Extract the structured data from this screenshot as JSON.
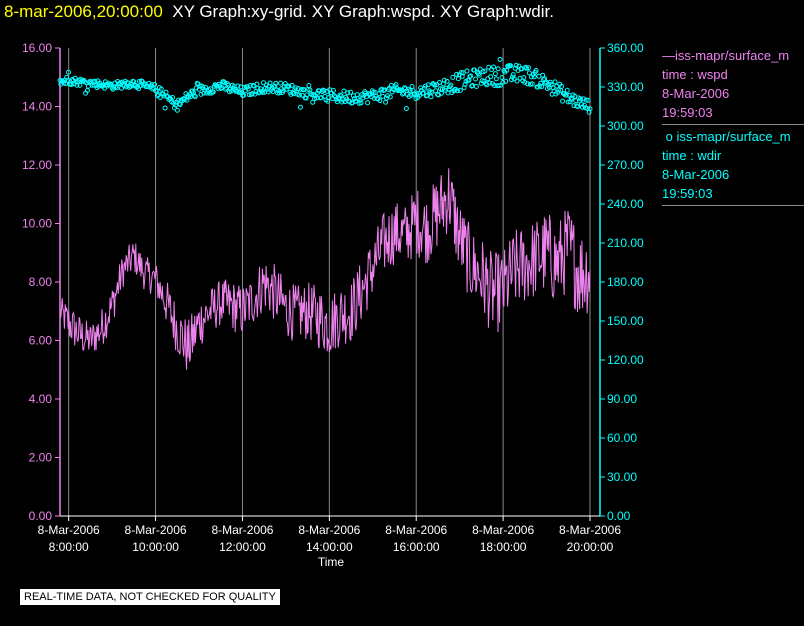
{
  "header": {
    "date": "8-mar-2006,20:00:00",
    "graphs": "XY Graph:xy-grid.  XY Graph:wspd.  XY Graph:wdir."
  },
  "legend": [
    {
      "label": "iss-mapr/surface_m",
      "line2": "time : wspd",
      "line3": "8-Mar-2006",
      "line4": "19:59:03",
      "color": "#ee82ee"
    },
    {
      "label": "iss-mapr/surface_m",
      "line2": "time : wdir",
      "line3": "8-Mar-2006",
      "line4": "19:59:03",
      "color": "#00ffff"
    }
  ],
  "notice": "REAL-TIME DATA, NOT CHECKED FOR QUALITY",
  "chart_data": {
    "type": "line",
    "xlabel": "Time",
    "x_ticks": [
      {
        "date": "8-Mar-2006",
        "time": "8:00:00",
        "hour": 8
      },
      {
        "date": "8-Mar-2006",
        "time": "10:00:00",
        "hour": 10
      },
      {
        "date": "8-Mar-2006",
        "time": "12:00:00",
        "hour": 12
      },
      {
        "date": "8-Mar-2006",
        "time": "14:00:00",
        "hour": 14
      },
      {
        "date": "8-Mar-2006",
        "time": "16:00:00",
        "hour": 16
      },
      {
        "date": "8-Mar-2006",
        "time": "18:00:00",
        "hour": 18
      },
      {
        "date": "8-Mar-2006",
        "time": "20:00:00",
        "hour": 20
      }
    ],
    "xlim": [
      7.8,
      20.0
    ],
    "y_left": {
      "ticks": [
        "0.00",
        "2.00",
        "4.00",
        "6.00",
        "8.00",
        "10.00",
        "12.00",
        "14.00",
        "16.00"
      ],
      "lim": [
        0,
        16
      ],
      "color": "#ee82ee"
    },
    "y_right": {
      "ticks": [
        "0.00",
        "30.00",
        "60.00",
        "90.00",
        "120.00",
        "150.00",
        "180.00",
        "210.00",
        "240.00",
        "270.00",
        "300.00",
        "330.00",
        "360.00"
      ],
      "lim": [
        0,
        360
      ],
      "color": "#00ffff"
    },
    "series": [
      {
        "name": "time : wspd",
        "axis": "left",
        "style": "line",
        "color": "#ee82ee",
        "x": [
          7.8,
          8.0,
          8.25,
          8.5,
          8.75,
          9.0,
          9.25,
          9.5,
          9.75,
          10.0,
          10.25,
          10.5,
          10.75,
          11.0,
          11.25,
          11.5,
          11.75,
          12.0,
          12.25,
          12.5,
          12.75,
          13.0,
          13.25,
          13.5,
          13.75,
          14.0,
          14.25,
          14.5,
          14.75,
          15.0,
          15.25,
          15.5,
          15.75,
          16.0,
          16.25,
          16.5,
          16.75,
          17.0,
          17.25,
          17.5,
          17.75,
          18.0,
          18.25,
          18.5,
          18.75,
          19.0,
          19.25,
          19.5,
          19.75,
          20.0
        ],
        "y": [
          7.0,
          6.6,
          6.2,
          6.0,
          6.4,
          7.2,
          8.4,
          8.9,
          8.3,
          8.1,
          7.3,
          6.4,
          5.7,
          6.6,
          7.0,
          7.3,
          7.2,
          7.0,
          7.4,
          8.0,
          7.6,
          7.1,
          6.9,
          7.0,
          6.8,
          6.5,
          6.9,
          7.0,
          7.7,
          8.5,
          9.3,
          9.7,
          9.6,
          10.1,
          9.8,
          10.4,
          11.0,
          9.5,
          8.6,
          8.2,
          7.6,
          7.7,
          8.4,
          8.6,
          8.8,
          9.0,
          8.6,
          9.2,
          8.3,
          8.4
        ],
        "amplitude": [
          0.5,
          0.7,
          0.7,
          0.6,
          0.7,
          0.7,
          0.6,
          0.6,
          0.6,
          0.6,
          0.8,
          0.9,
          1.0,
          0.9,
          0.8,
          0.8,
          0.9,
          0.9,
          0.9,
          1.0,
          1.0,
          1.0,
          1.0,
          1.0,
          1.1,
          1.1,
          1.1,
          1.1,
          1.1,
          1.1,
          1.1,
          1.1,
          1.1,
          1.2,
          1.2,
          1.3,
          1.3,
          1.3,
          1.3,
          1.4,
          1.4,
          1.4,
          1.4,
          1.4,
          1.4,
          1.5,
          1.5,
          1.5,
          1.6,
          1.5
        ]
      },
      {
        "name": "time : wdir",
        "axis": "right",
        "style": "scatter",
        "color": "#00ffff",
        "x": [
          7.8,
          8.0,
          8.5,
          9.0,
          9.5,
          10.0,
          10.25,
          10.5,
          10.75,
          11.0,
          11.5,
          12.0,
          12.5,
          13.0,
          13.5,
          14.0,
          14.5,
          15.0,
          15.5,
          16.0,
          16.5,
          17.0,
          17.5,
          18.0,
          18.5,
          19.0,
          19.5,
          19.75,
          20.0
        ],
        "y": [
          334,
          335,
          333,
          331,
          333,
          328,
          322,
          316,
          323,
          327,
          331,
          326,
          330,
          329,
          325,
          323,
          322,
          323,
          327,
          326,
          329,
          334,
          338,
          339,
          340,
          333,
          322,
          318,
          315
        ],
        "amplitude": [
          3,
          3,
          3,
          3,
          3,
          4,
          4,
          4,
          4,
          4,
          4,
          4,
          4,
          4,
          4,
          5,
          5,
          5,
          5,
          5,
          6,
          7,
          7,
          8,
          7,
          6,
          6,
          5,
          5
        ]
      }
    ]
  }
}
